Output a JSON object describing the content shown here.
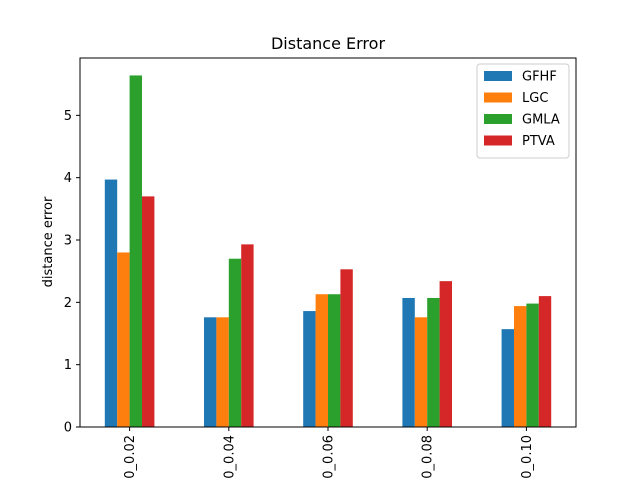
{
  "chart_data": {
    "type": "bar",
    "title": "Distance Error",
    "xlabel": "",
    "ylabel": "distance error",
    "categories": [
      "0_0.02",
      "0_0.04",
      "0_0.06",
      "0_0.08",
      "0_0.10"
    ],
    "series": [
      {
        "name": "GFHF",
        "color": "#1f77b4",
        "values": [
          3.97,
          1.76,
          1.86,
          2.07,
          1.57
        ]
      },
      {
        "name": "LGC",
        "color": "#ff7f0e",
        "values": [
          2.8,
          1.76,
          2.13,
          1.76,
          1.94
        ]
      },
      {
        "name": "GMLA",
        "color": "#2ca02c",
        "values": [
          5.64,
          2.7,
          2.13,
          2.07,
          1.98
        ]
      },
      {
        "name": "PTVA",
        "color": "#d62728",
        "values": [
          3.7,
          2.93,
          2.53,
          2.34,
          2.1
        ]
      }
    ],
    "ylim": [
      0,
      5.92
    ],
    "yticks": [
      0,
      1,
      2,
      3,
      4,
      5
    ],
    "grid": false,
    "legend_position": "top-right"
  }
}
